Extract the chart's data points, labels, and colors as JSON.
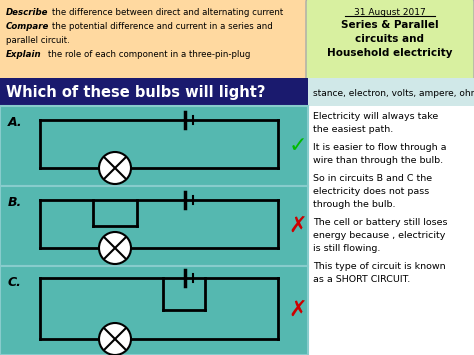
{
  "title_date": "31 August 2017",
  "title_subject": "Series & Parallel\ncircuits and\nHousehold electricity",
  "main_question": "Which of these bulbs will light?",
  "vocab_text": "stance, electron, volts, ampere, ohm",
  "right_text_lines": [
    "Electricity will always take",
    "the easiest path.",
    "",
    "It is easier to flow through a",
    "wire than through the bulb.",
    "",
    "So in circuits B and C the",
    "electricity does not pass",
    "through the bulb.",
    "",
    "The cell or battery still loses",
    "energy because , electricity",
    "is still flowing.",
    "",
    "This type of circuit is known",
    "as a SHORT CIRCUIT."
  ],
  "bg_color": "#ffffff",
  "header_bg": "#ffd9a0",
  "subject_bg": "#d8f0a0",
  "question_bg": "#1a1a6e",
  "circuit_bg": "#55b8b0",
  "vocab_bg": "#d0e8e8",
  "labels": [
    "A.",
    "B.",
    "C."
  ],
  "marks": [
    "✓",
    "✗",
    "✗"
  ],
  "mark_colors": [
    "#00bb00",
    "#cc0000",
    "#cc0000"
  ]
}
